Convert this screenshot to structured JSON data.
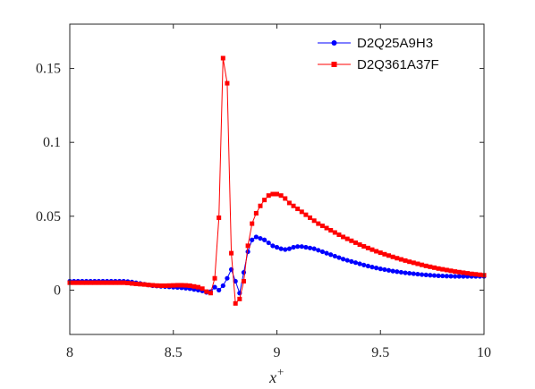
{
  "chart_data": {
    "type": "line",
    "title": "",
    "xlabel": "x",
    "xlabel_superscript": "+",
    "ylabel": "",
    "xlim": [
      8,
      10
    ],
    "ylim": [
      -0.03,
      0.18
    ],
    "xticks": [
      8,
      8.5,
      9,
      9.5,
      10
    ],
    "xtick_labels": [
      "8",
      "8.5",
      "9",
      "9.5",
      "10"
    ],
    "yticks": [
      0,
      0.05,
      0.1,
      0.15
    ],
    "ytick_labels": [
      "0",
      "0.05",
      "0.1",
      "0.15"
    ],
    "grid": false,
    "legend": "top-right",
    "series": [
      {
        "name": "D2Q25A9H3",
        "color": "#0000ff",
        "marker": "circle",
        "x": [
          8.0,
          8.02,
          8.04,
          8.06,
          8.08,
          8.1,
          8.12,
          8.14,
          8.16,
          8.18,
          8.2,
          8.22,
          8.24,
          8.26,
          8.28,
          8.3,
          8.32,
          8.34,
          8.36,
          8.38,
          8.4,
          8.42,
          8.44,
          8.46,
          8.48,
          8.5,
          8.52,
          8.54,
          8.56,
          8.58,
          8.6,
          8.62,
          8.64,
          8.66,
          8.68,
          8.7,
          8.72,
          8.74,
          8.76,
          8.78,
          8.8,
          8.82,
          8.84,
          8.86,
          8.88,
          8.9,
          8.92,
          8.94,
          8.96,
          8.98,
          9.0,
          9.02,
          9.04,
          9.06,
          9.08,
          9.1,
          9.12,
          9.14,
          9.16,
          9.18,
          9.2,
          9.22,
          9.24,
          9.26,
          9.28,
          9.3,
          9.32,
          9.34,
          9.36,
          9.38,
          9.4,
          9.42,
          9.44,
          9.46,
          9.48,
          9.5,
          9.52,
          9.54,
          9.56,
          9.58,
          9.6,
          9.62,
          9.64,
          9.66,
          9.68,
          9.7,
          9.72,
          9.74,
          9.76,
          9.78,
          9.8,
          9.82,
          9.84,
          9.86,
          9.88,
          9.9,
          9.92,
          9.94,
          9.96,
          9.98,
          10.0
        ],
        "y": [
          0.006,
          0.006,
          0.006,
          0.006,
          0.006,
          0.006,
          0.006,
          0.006,
          0.006,
          0.006,
          0.006,
          0.006,
          0.006,
          0.006,
          0.0058,
          0.0055,
          0.005,
          0.0045,
          0.004,
          0.0035,
          0.003,
          0.0028,
          0.0026,
          0.0024,
          0.0022,
          0.002,
          0.0018,
          0.0016,
          0.0013,
          0.001,
          0.0005,
          0.0,
          -0.0005,
          -0.0015,
          -0.001,
          0.002,
          0.0,
          0.003,
          0.008,
          0.014,
          0.006,
          -0.002,
          0.012,
          0.026,
          0.034,
          0.036,
          0.035,
          0.034,
          0.032,
          0.03,
          0.029,
          0.028,
          0.0275,
          0.028,
          0.029,
          0.0295,
          0.0295,
          0.029,
          0.0285,
          0.028,
          0.027,
          0.026,
          0.025,
          0.024,
          0.023,
          0.022,
          0.021,
          0.0202,
          0.0194,
          0.0186,
          0.0178,
          0.017,
          0.0163,
          0.0156,
          0.015,
          0.0144,
          0.0139,
          0.0134,
          0.0129,
          0.0125,
          0.0121,
          0.0117,
          0.0114,
          0.0111,
          0.0108,
          0.0105,
          0.0103,
          0.0101,
          0.0099,
          0.0097,
          0.0096,
          0.0095,
          0.0094,
          0.0093,
          0.0093,
          0.0093,
          0.0093,
          0.0093,
          0.0093,
          0.0093,
          0.0093
        ]
      },
      {
        "name": "D2Q361A37F",
        "color": "#ff0000",
        "marker": "square",
        "x": [
          8.0,
          8.02,
          8.04,
          8.06,
          8.08,
          8.1,
          8.12,
          8.14,
          8.16,
          8.18,
          8.2,
          8.22,
          8.24,
          8.26,
          8.28,
          8.3,
          8.32,
          8.34,
          8.36,
          8.38,
          8.4,
          8.42,
          8.44,
          8.46,
          8.48,
          8.5,
          8.52,
          8.54,
          8.56,
          8.58,
          8.6,
          8.62,
          8.64,
          8.66,
          8.68,
          8.7,
          8.72,
          8.74,
          8.76,
          8.78,
          8.8,
          8.82,
          8.84,
          8.86,
          8.88,
          8.9,
          8.92,
          8.94,
          8.96,
          8.98,
          9.0,
          9.02,
          9.04,
          9.06,
          9.08,
          9.1,
          9.12,
          9.14,
          9.16,
          9.18,
          9.2,
          9.22,
          9.24,
          9.26,
          9.28,
          9.3,
          9.32,
          9.34,
          9.36,
          9.38,
          9.4,
          9.42,
          9.44,
          9.46,
          9.48,
          9.5,
          9.52,
          9.54,
          9.56,
          9.58,
          9.6,
          9.62,
          9.64,
          9.66,
          9.68,
          9.7,
          9.72,
          9.74,
          9.76,
          9.78,
          9.8,
          9.82,
          9.84,
          9.86,
          9.88,
          9.9,
          9.92,
          9.94,
          9.96,
          9.98,
          10.0
        ],
        "y": [
          0.005,
          0.005,
          0.005,
          0.005,
          0.005,
          0.005,
          0.005,
          0.005,
          0.005,
          0.005,
          0.005,
          0.005,
          0.005,
          0.005,
          0.0048,
          0.0045,
          0.0042,
          0.004,
          0.0038,
          0.0035,
          0.0033,
          0.0031,
          0.003,
          0.003,
          0.0031,
          0.0032,
          0.0033,
          0.0033,
          0.0032,
          0.003,
          0.0025,
          0.002,
          0.001,
          -0.001,
          -0.002,
          0.008,
          0.049,
          0.157,
          0.14,
          0.025,
          -0.009,
          -0.006,
          0.006,
          0.03,
          0.045,
          0.052,
          0.057,
          0.061,
          0.064,
          0.065,
          0.065,
          0.064,
          0.062,
          0.059,
          0.057,
          0.055,
          0.053,
          0.051,
          0.049,
          0.047,
          0.045,
          0.0435,
          0.042,
          0.0405,
          0.039,
          0.0375,
          0.036,
          0.0347,
          0.0334,
          0.0321,
          0.0308,
          0.0296,
          0.0285,
          0.0274,
          0.0263,
          0.0253,
          0.0243,
          0.0234,
          0.0225,
          0.0216,
          0.0208,
          0.02,
          0.0192,
          0.0185,
          0.0178,
          0.0171,
          0.0164,
          0.0158,
          0.0152,
          0.0146,
          0.0141,
          0.0136,
          0.0131,
          0.0126,
          0.0122,
          0.0118,
          0.0114,
          0.011,
          0.0107,
          0.0104,
          0.0101
        ]
      }
    ]
  }
}
